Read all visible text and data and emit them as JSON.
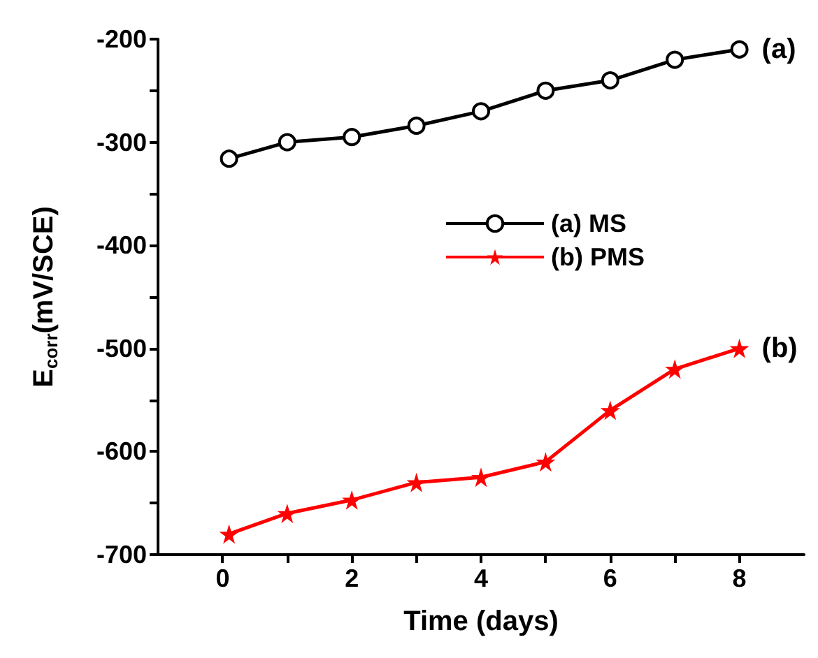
{
  "chart_data": {
    "type": "line",
    "xlabel": "Time (days)",
    "ylabel": "E$_{corr}$(mV/SCE)",
    "x": [
      0.1,
      1,
      2,
      3,
      4,
      5,
      6,
      7,
      8
    ],
    "series": [
      {
        "name": "(a) MS",
        "color": "#000000",
        "marker": "circle",
        "values": [
          -316,
          -300,
          -295,
          -284,
          -270,
          -250,
          -240,
          -220,
          -210
        ]
      },
      {
        "name": "(b) PMS",
        "color": "#ff0000",
        "marker": "star",
        "values": [
          -680,
          -660,
          -647,
          -630,
          -625,
          -610,
          -560,
          -520,
          -500
        ]
      }
    ],
    "xlim": [
      -1,
      9
    ],
    "xticks": [
      0,
      {
        "value": 1,
        "label": null
      },
      2,
      {
        "value": 3,
        "label": null
      },
      4,
      {
        "value": 5,
        "label": null
      },
      6,
      {
        "value": 7,
        "label": null
      },
      8
    ],
    "ylim": [
      -700,
      -200
    ],
    "yticks": [
      -700,
      {
        "value": -650,
        "label": null
      },
      -600,
      {
        "value": -550,
        "label": null
      },
      -500,
      {
        "value": -450,
        "label": null
      },
      -400,
      {
        "value": -350,
        "label": null
      },
      -300,
      {
        "value": -250,
        "label": null
      },
      -200
    ],
    "annotations": [
      {
        "text": "(a)",
        "x": 8,
        "y": -210
      },
      {
        "text": "(b)",
        "x": 8,
        "y": -500
      }
    ],
    "legend": "center",
    "grid": false
  }
}
